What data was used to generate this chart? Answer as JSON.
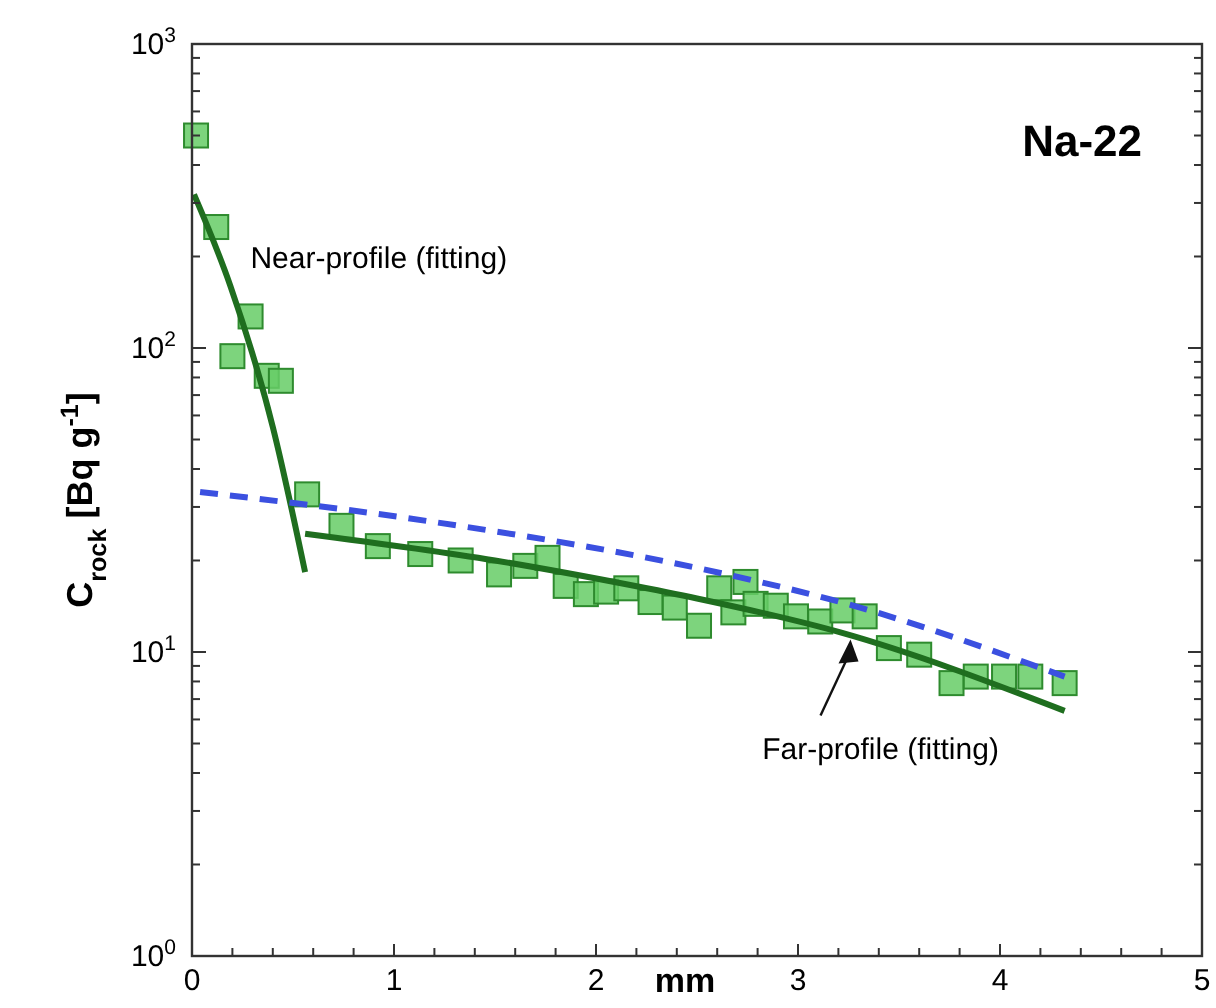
{
  "chart_data": {
    "type": "scatter",
    "title": "Na-22",
    "xlabel": "mm",
    "ylabel": "C$_{rock}$ [Bq g$^{-1}$]",
    "log": "y",
    "xlim": [
      0,
      5
    ],
    "ylim": [
      1,
      1000
    ],
    "xticks": [
      0,
      {
        "value": 0.2,
        "label": null
      },
      {
        "value": 0.4,
        "label": null
      },
      {
        "value": 0.6,
        "label": null
      },
      {
        "value": 0.8,
        "label": null
      },
      1,
      {
        "value": 1.2,
        "label": null
      },
      {
        "value": 1.4,
        "label": null
      },
      {
        "value": 1.6,
        "label": null
      },
      {
        "value": 1.8,
        "label": null
      },
      2,
      {
        "value": 2.2,
        "label": null
      },
      {
        "value": 2.4,
        "label": null
      },
      {
        "value": 2.6,
        "label": null
      },
      {
        "value": 2.8,
        "label": null
      },
      3,
      {
        "value": 3.2,
        "label": null
      },
      {
        "value": 3.4,
        "label": null
      },
      {
        "value": 3.6,
        "label": null
      },
      {
        "value": 3.8,
        "label": null
      },
      4,
      {
        "value": 4.2,
        "label": null
      },
      {
        "value": 4.4,
        "label": null
      },
      {
        "value": 4.6,
        "label": null
      },
      {
        "value": 4.8,
        "label": null
      },
      5
    ],
    "yticks": [
      {
        "value": 1,
        "label": "10$^{0}$"
      },
      {
        "value": 2,
        "label": null
      },
      {
        "value": 3,
        "label": null
      },
      {
        "value": 4,
        "label": null
      },
      {
        "value": 5,
        "label": null
      },
      {
        "value": 6,
        "label": null
      },
      {
        "value": 7,
        "label": null
      },
      {
        "value": 8,
        "label": null
      },
      {
        "value": 9,
        "label": null
      },
      {
        "value": 10,
        "label": "10$^{1}$"
      },
      {
        "value": 20,
        "label": null
      },
      {
        "value": 30,
        "label": null
      },
      {
        "value": 40,
        "label": null
      },
      {
        "value": 50,
        "label": null
      },
      {
        "value": 60,
        "label": null
      },
      {
        "value": 70,
        "label": null
      },
      {
        "value": 80,
        "label": null
      },
      {
        "value": 90,
        "label": null
      },
      {
        "value": 100,
        "label": "10$^{2}$"
      },
      {
        "value": 200,
        "label": null
      },
      {
        "value": 300,
        "label": null
      },
      {
        "value": 400,
        "label": null
      },
      {
        "value": 500,
        "label": null
      },
      {
        "value": 600,
        "label": null
      },
      {
        "value": 700,
        "label": null
      },
      {
        "value": 800,
        "label": null
      },
      {
        "value": 900,
        "label": null
      },
      {
        "value": 1000,
        "label": "10$^{3}$"
      }
    ],
    "grid": false,
    "annotations": [
      {
        "text": "Near-profile (fitting)",
        "x": 0.19,
        "y": 160
      },
      {
        "text": "Far-profile (fitting)",
        "x": 3.26,
        "y": 11
      }
    ],
    "series": [
      {
        "marker": "square",
        "color": "#66cc66",
        "x": [
          0.02,
          0.12,
          0.2,
          0.29,
          0.37,
          0.44,
          0.57,
          0.74,
          0.92,
          1.13,
          1.33,
          1.52,
          1.65,
          1.76,
          1.85,
          1.95,
          2.05,
          2.15,
          2.27,
          2.39,
          2.51,
          2.61,
          2.68,
          2.74,
          2.79,
          2.89,
          2.99,
          3.11,
          3.22,
          3.33,
          3.45,
          3.6,
          3.76,
          3.88,
          4.02,
          4.15,
          4.32
        ],
        "values": [
          500,
          250,
          94,
          127,
          81,
          78,
          33,
          26,
          22.3,
          21,
          20,
          18,
          19.2,
          20.4,
          16.5,
          15.5,
          15.8,
          16.2,
          14.6,
          14,
          12.2,
          16.2,
          13.5,
          17,
          14.4,
          14.2,
          13.1,
          12.6,
          13.7,
          13.1,
          10.3,
          9.8,
          7.9,
          8.3,
          8.3,
          8.3,
          7.9
        ]
      },
      {
        "type": "line",
        "color": "#1f6e1f",
        "line_style": "solid",
        "marker": "none",
        "x": [
          0.01,
          0.19,
          0.4,
          0.56
        ],
        "values": [
          320,
          160,
          55,
          18.3
        ]
      },
      {
        "type": "line",
        "color": "#1f6e1f",
        "line_style": "solid",
        "marker": "none",
        "x": [
          0.56,
          1.5,
          2.15,
          2.5,
          3.21,
          4.32
        ],
        "values": [
          24.5,
          20,
          16.7,
          15,
          11.6,
          6.4
        ]
      },
      {
        "type": "line",
        "color": "#3b50e0",
        "line_style": "dashed",
        "marker": "none",
        "x": [
          0.04,
          1.16,
          2.68,
          3.21,
          4.32
        ],
        "values": [
          33.6,
          27,
          17.8,
          14.6,
          8.3
        ]
      }
    ]
  }
}
